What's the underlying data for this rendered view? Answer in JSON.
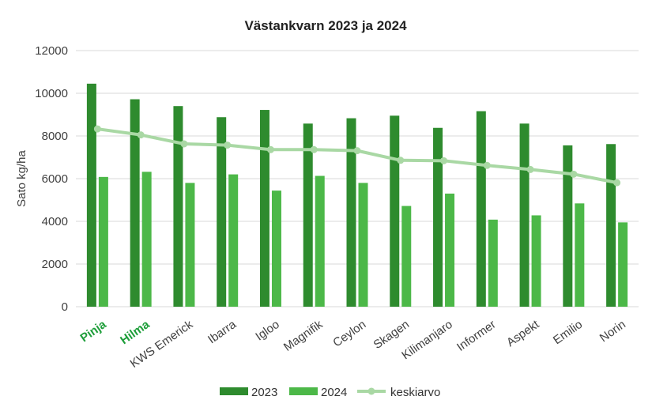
{
  "chart_data": {
    "type": "bar",
    "title": "Västankvarn 2023 ja 2024",
    "xlabel": "",
    "ylabel": "Sato kg/ha",
    "ylim": [
      0,
      12000
    ],
    "yticks": [
      0,
      2000,
      4000,
      6000,
      8000,
      10000,
      12000
    ],
    "grid": true,
    "legend_position": "bottom",
    "categories": [
      "Pinja",
      "Hilma",
      "KWS Emerick",
      "Ibarra",
      "Igloo",
      "Magnifik",
      "Ceylon",
      "Skagen",
      "Kilimanjaro",
      "Informer",
      "Aspekt",
      "Emilio",
      "Norin"
    ],
    "highlighted_categories": [
      "Pinja",
      "Hilma"
    ],
    "series": [
      {
        "name": "2023",
        "type": "bar",
        "color": "#2e8b2e",
        "values": [
          10450,
          9720,
          9400,
          8880,
          9220,
          8580,
          8830,
          8950,
          8380,
          9160,
          8580,
          7560,
          7620
        ]
      },
      {
        "name": "2024",
        "type": "bar",
        "color": "#4cb848",
        "values": [
          6080,
          6320,
          5800,
          6200,
          5440,
          6130,
          5800,
          4720,
          5300,
          4080,
          4280,
          4840,
          3950
        ]
      },
      {
        "name": "keskiarvo",
        "type": "line",
        "color": "#a9d8a4",
        "values": [
          8330,
          8050,
          7630,
          7570,
          7360,
          7360,
          7310,
          6860,
          6840,
          6620,
          6430,
          6210,
          5810
        ]
      }
    ],
    "colors": {
      "highlight_label": "#1e9e3a",
      "grid": "#d9d9d9",
      "axis_text": "#404040"
    }
  }
}
